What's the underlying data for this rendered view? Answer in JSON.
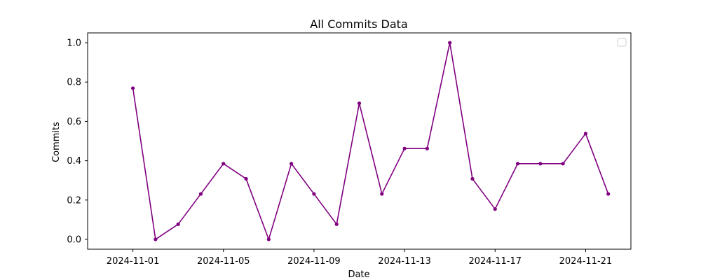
{
  "chart_data": {
    "type": "line",
    "title": "All Commits Data",
    "xlabel": "Date",
    "ylabel": "Commits",
    "x": [
      "2024-11-01",
      "2024-11-02",
      "2024-11-03",
      "2024-11-04",
      "2024-11-05",
      "2024-11-06",
      "2024-11-07",
      "2024-11-08",
      "2024-11-09",
      "2024-11-10",
      "2024-11-11",
      "2024-11-12",
      "2024-11-13",
      "2024-11-14",
      "2024-11-15",
      "2024-11-16",
      "2024-11-17",
      "2024-11-18",
      "2024-11-19",
      "2024-11-20",
      "2024-11-21",
      "2024-11-22"
    ],
    "series": [
      {
        "values": [
          0.769,
          0.0,
          0.077,
          0.231,
          0.385,
          0.308,
          0.0,
          0.385,
          0.231,
          0.077,
          0.692,
          0.231,
          0.462,
          0.462,
          1.0,
          0.308,
          0.154,
          0.385,
          0.385,
          0.385,
          0.538,
          0.231
        ],
        "color": "#800080"
      }
    ],
    "xlim": [
      "2024-10-30",
      "2024-11-23"
    ],
    "ylim": [
      -0.05,
      1.05
    ],
    "xticks": [
      "2024-11-01",
      "2024-11-05",
      "2024-11-09",
      "2024-11-13",
      "2024-11-17",
      "2024-11-21"
    ],
    "yticks": [
      "0.0",
      "0.2",
      "0.4",
      "0.6",
      "0.8",
      "1.0"
    ],
    "grid": false,
    "legend": "top-right"
  }
}
